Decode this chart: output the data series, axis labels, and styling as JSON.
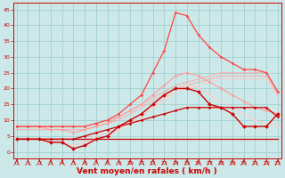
{
  "xlabel": "Vent moyen/en rafales ( km/h )",
  "background_color": "#cce8e8",
  "grid_color": "#99cccc",
  "xlim": [
    -0.3,
    23.3
  ],
  "ylim": [
    -2,
    47
  ],
  "yticks": [
    0,
    5,
    10,
    15,
    20,
    25,
    30,
    35,
    40,
    45
  ],
  "xticks": [
    0,
    1,
    2,
    3,
    4,
    5,
    6,
    7,
    8,
    9,
    10,
    11,
    12,
    13,
    14,
    15,
    16,
    17,
    18,
    19,
    20,
    21,
    22,
    23
  ],
  "lines": [
    {
      "x": [
        0,
        1,
        2,
        3,
        4,
        5,
        6,
        7,
        8,
        9,
        10,
        11,
        12,
        13,
        14,
        15,
        16,
        17,
        18,
        19,
        20,
        21,
        22,
        23
      ],
      "y": [
        8,
        8,
        8,
        8,
        8,
        8,
        8,
        9,
        10,
        11,
        13,
        15,
        17,
        19,
        21,
        22,
        23,
        24,
        25,
        25,
        25,
        25,
        25,
        19
      ],
      "color": "#ffaaaa",
      "lw": 0.7,
      "marker": null,
      "ms": 0
    },
    {
      "x": [
        0,
        1,
        2,
        3,
        4,
        5,
        6,
        7,
        8,
        9,
        10,
        11,
        12,
        13,
        14,
        15,
        16,
        17,
        18,
        19,
        20,
        21,
        22,
        23
      ],
      "y": [
        7,
        7,
        7,
        7,
        7,
        7,
        7,
        8,
        9,
        10,
        12,
        14,
        16,
        18,
        20,
        21,
        22,
        23,
        24,
        24,
        24,
        24,
        24,
        18
      ],
      "color": "#ffaaaa",
      "lw": 0.7,
      "marker": null,
      "ms": 0
    },
    {
      "x": [
        0,
        1,
        2,
        3,
        4,
        5,
        6,
        7,
        8,
        9,
        10,
        11,
        12,
        13,
        14,
        15,
        16,
        17,
        18,
        19,
        20,
        21,
        22,
        23
      ],
      "y": [
        8,
        8,
        8,
        7,
        7,
        6,
        7,
        8,
        9,
        11,
        13,
        15,
        18,
        21,
        24,
        25,
        24,
        22,
        20,
        18,
        16,
        14,
        13,
        12
      ],
      "color": "#ff9999",
      "lw": 0.8,
      "marker": "D",
      "ms": 1.5
    },
    {
      "x": [
        0,
        1,
        2,
        3,
        4,
        5,
        6,
        7,
        8,
        9,
        10,
        11,
        12,
        13,
        14,
        15,
        16,
        17,
        18,
        19,
        20,
        21,
        22,
        23
      ],
      "y": [
        4,
        4,
        4,
        4,
        4,
        4,
        4,
        5,
        6,
        7,
        9,
        11,
        14,
        16,
        19,
        20,
        21,
        22,
        23,
        23,
        23,
        23,
        23,
        17
      ],
      "color": "#ffcccc",
      "lw": 0.7,
      "marker": null,
      "ms": 0
    },
    {
      "x": [
        0,
        1,
        2,
        3,
        4,
        5,
        6,
        7,
        8,
        9,
        10,
        11,
        12,
        13,
        14,
        15,
        16,
        17,
        18,
        19,
        20,
        21,
        22,
        23
      ],
      "y": [
        4,
        4,
        4,
        3,
        3,
        2,
        3,
        4,
        5,
        7,
        9,
        11,
        14,
        17,
        20,
        21,
        20,
        18,
        16,
        14,
        12,
        10,
        9,
        8
      ],
      "color": "#ffcccc",
      "lw": 0.7,
      "marker": "D",
      "ms": 1.2
    },
    {
      "x": [
        0,
        1,
        2,
        3,
        4,
        5,
        6,
        7,
        8,
        9,
        10,
        11,
        12,
        13,
        14,
        15,
        16,
        17,
        18,
        19,
        20,
        21,
        22,
        23
      ],
      "y": [
        4,
        4,
        4,
        4,
        4,
        4,
        4,
        4,
        4,
        4,
        4,
        4,
        4,
        4,
        4,
        4,
        4,
        4,
        4,
        4,
        4,
        4,
        4,
        4
      ],
      "color": "#cc0000",
      "lw": 0.9,
      "marker": null,
      "ms": 0
    },
    {
      "x": [
        0,
        1,
        2,
        3,
        4,
        5,
        6,
        7,
        8,
        9,
        10,
        11,
        12,
        13,
        14,
        15,
        16,
        17,
        18,
        19,
        20,
        21,
        22,
        23
      ],
      "y": [
        4,
        4,
        4,
        4,
        4,
        4,
        5,
        6,
        7,
        8,
        9,
        10,
        11,
        12,
        13,
        14,
        14,
        14,
        14,
        14,
        14,
        14,
        14,
        11
      ],
      "color": "#cc0000",
      "lw": 0.9,
      "marker": "D",
      "ms": 1.5
    },
    {
      "x": [
        0,
        1,
        2,
        3,
        4,
        5,
        6,
        7,
        8,
        9,
        10,
        11,
        12,
        13,
        14,
        15,
        16,
        17,
        18,
        19,
        20,
        21,
        22,
        23
      ],
      "y": [
        4,
        4,
        4,
        3,
        3,
        1,
        2,
        4,
        5,
        8,
        10,
        12,
        15,
        18,
        20,
        20,
        19,
        15,
        14,
        12,
        8,
        8,
        8,
        12
      ],
      "color": "#cc0000",
      "lw": 1.0,
      "marker": "D",
      "ms": 2.0
    },
    {
      "x": [
        0,
        1,
        2,
        3,
        4,
        5,
        6,
        7,
        8,
        9,
        10,
        11,
        12,
        13,
        14,
        15,
        16,
        17,
        18,
        19,
        20,
        21,
        22,
        23
      ],
      "y": [
        8,
        8,
        8,
        8,
        8,
        8,
        8,
        9,
        10,
        12,
        15,
        18,
        25,
        32,
        44,
        43,
        37,
        33,
        30,
        28,
        26,
        26,
        25,
        19
      ],
      "color": "#ff4444",
      "lw": 0.9,
      "marker": "D",
      "ms": 1.5
    }
  ],
  "tick_color": "#cc0000",
  "xlabel_color": "#cc0000",
  "xlabel_fontsize": 6.5,
  "tick_fontsize": 4.5,
  "spine_color": "#cc0000"
}
